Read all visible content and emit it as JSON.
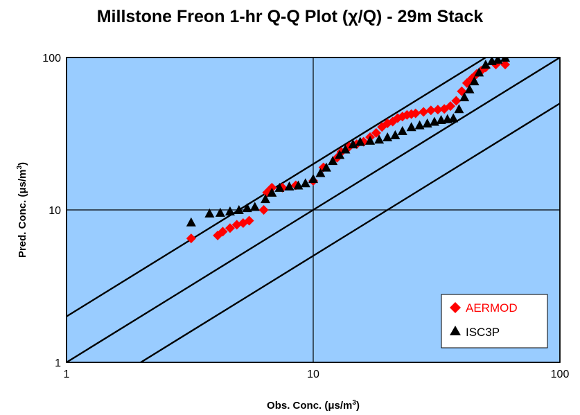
{
  "chart_data": {
    "type": "scatter",
    "title": "Millstone Freon 1-hr Q-Q Plot (χ/Q) - 29m Stack",
    "xlabel": "Obs. Conc. (μs/m",
    "ylabel": "Pred. Conc. (μs/m",
    "unit_exponent": "3",
    "axis_label_suffix": ")",
    "xscale": "log",
    "yscale": "log",
    "xlim": [
      1,
      100
    ],
    "ylim": [
      1,
      100
    ],
    "xticks": [
      "1",
      "10",
      "100"
    ],
    "yticks": [
      "1",
      "10",
      "100"
    ],
    "grid": "major decades",
    "legend_position": "bottom-right",
    "plot_background": "#99ccff",
    "reference_lines": [
      {
        "y_over_x": 2
      },
      {
        "y_over_x": 1
      },
      {
        "y_over_x": 0.5
      }
    ],
    "series": [
      {
        "name": "AERMOD",
        "marker": "diamond",
        "color": "#ff0000",
        "x": [
          3.2,
          4.1,
          4.3,
          4.6,
          4.9,
          5.2,
          5.5,
          6.3,
          6.5,
          6.8,
          7.5,
          8.5,
          10,
          11,
          12.5,
          13,
          14,
          15,
          16,
          17,
          18,
          19,
          20,
          21,
          22,
          23,
          24,
          25,
          26,
          28,
          30,
          32,
          34,
          36,
          38,
          40,
          42,
          44,
          46,
          48,
          50,
          55,
          60
        ],
        "y": [
          6.5,
          6.8,
          7.2,
          7.6,
          8.0,
          8.2,
          8.5,
          10,
          13,
          14,
          14,
          14.5,
          15.5,
          19,
          22,
          24,
          26,
          27,
          28,
          30,
          32,
          35,
          37,
          38,
          40,
          41,
          42,
          42.5,
          43,
          44,
          45,
          45.5,
          46,
          48,
          52,
          60,
          68,
          73,
          78,
          82,
          86,
          90,
          90
        ]
      },
      {
        "name": "ISC3P",
        "marker": "triangle",
        "color": "#000000",
        "x": [
          3.2,
          3.8,
          4.2,
          4.6,
          5.0,
          5.4,
          5.8,
          6.4,
          6.8,
          7.3,
          8.0,
          8.7,
          9.3,
          10,
          10.7,
          11.3,
          12,
          12.8,
          13.5,
          14.5,
          15.5,
          17,
          18.5,
          20,
          21.5,
          23,
          25,
          27,
          29,
          31,
          33,
          35,
          37,
          39,
          41,
          43,
          45,
          47,
          50,
          53,
          56,
          60
        ],
        "y": [
          8.3,
          9.5,
          9.6,
          9.8,
          10,
          10.3,
          10.5,
          11.8,
          13,
          14,
          14.3,
          14.5,
          15,
          16,
          17.5,
          19,
          21,
          23,
          25,
          27,
          28,
          28.5,
          29,
          30,
          31,
          33,
          35,
          36,
          37,
          38,
          39,
          39.5,
          40,
          46,
          55,
          62,
          70,
          80,
          90,
          95,
          97,
          100
        ]
      }
    ]
  }
}
